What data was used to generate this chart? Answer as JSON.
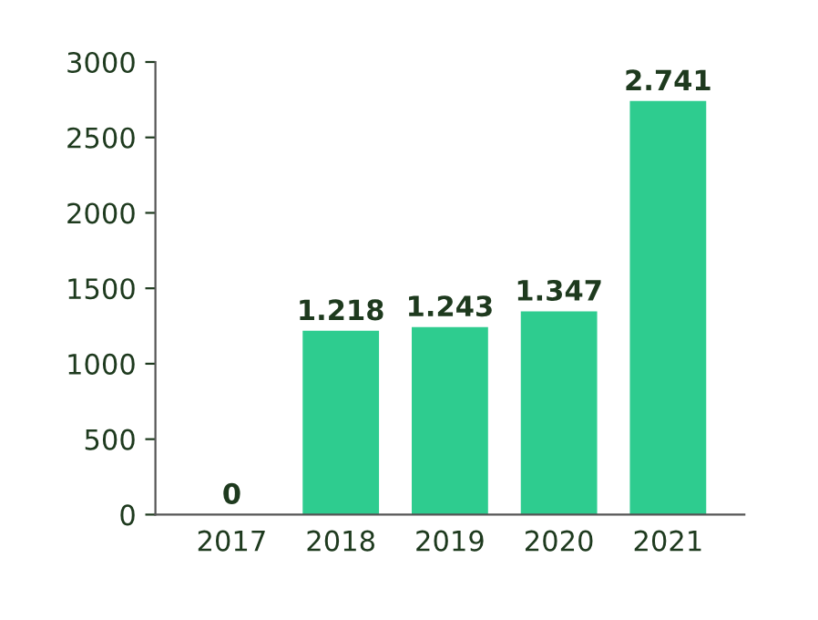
{
  "chart_data": {
    "type": "bar",
    "categories": [
      "2017",
      "2018",
      "2019",
      "2020",
      "2021"
    ],
    "values": [
      0,
      1218,
      1243,
      1347,
      2741
    ],
    "value_labels": [
      "0",
      "1.218",
      "1.243",
      "1.347",
      "2.741"
    ],
    "color": "#2ecc8f",
    "ylim": [
      0,
      3000
    ],
    "yticks": [
      0,
      500,
      1000,
      1500,
      2000,
      2500,
      3000
    ],
    "grid": false,
    "legend": false
  }
}
